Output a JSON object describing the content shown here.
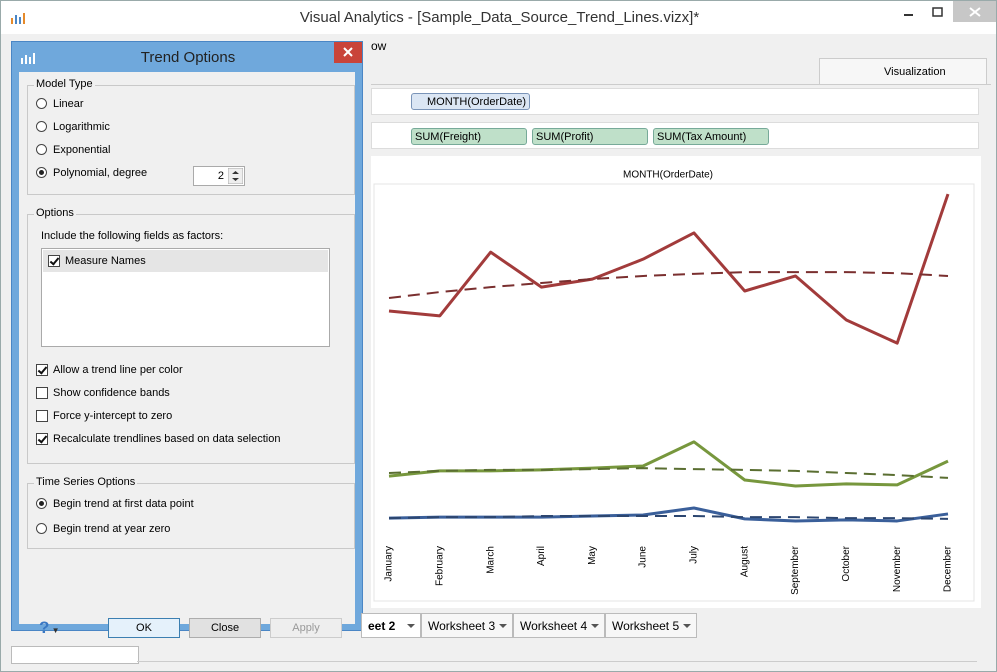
{
  "window": {
    "title": "Visual Analytics - [Sample_Data_Source_Trend_Lines.vizx]*"
  },
  "menu": {
    "item": "ow"
  },
  "panel_tab": "Visualization",
  "shelves": {
    "columns": [
      "MONTH(OrderDate)"
    ],
    "rows": [
      "SUM(Freight)",
      "SUM(Profit)",
      "SUM(Tax Amount)"
    ]
  },
  "sheet_tabs": [
    "eet 2",
    "Worksheet 3",
    "Worksheet 4",
    "Worksheet 5"
  ],
  "chart_data": {
    "type": "line",
    "title": "MONTH(OrderDate)",
    "categories": [
      "January",
      "February",
      "March",
      "April",
      "May",
      "June",
      "July",
      "August",
      "September",
      "October",
      "November",
      "December"
    ],
    "ylim": [
      0,
      100
    ],
    "series": [
      {
        "color": "#a23b3b",
        "dashed": false,
        "values": [
          64.3,
          62.9,
          81.1,
          71.1,
          73.4,
          79.1,
          86.6,
          70,
          74.3,
          61.7,
          55.1,
          97.7
        ]
      },
      {
        "color": "#7a2f2f",
        "dashed": true,
        "values": [
          68,
          69.7,
          71.1,
          72.3,
          73.4,
          74.3,
          74.9,
          75.4,
          75.4,
          75.4,
          75.1,
          74.3
        ]
      },
      {
        "color": "#77973d",
        "dashed": false,
        "values": [
          17.1,
          18.6,
          18.6,
          18.9,
          19.4,
          20,
          26.9,
          16,
          14.3,
          14.9,
          14.6,
          21.4
        ]
      },
      {
        "color": "#5a6e31",
        "dashed": true,
        "values": [
          18,
          18.6,
          18.9,
          18.9,
          19.1,
          19.4,
          19.1,
          18.9,
          18.6,
          18,
          17.4,
          16.6
        ]
      },
      {
        "color": "#3a5f9a",
        "dashed": false,
        "values": [
          5.1,
          5.4,
          5.4,
          5.4,
          5.7,
          6,
          8,
          4.9,
          4.3,
          4.6,
          4.3,
          6.3
        ]
      },
      {
        "color": "#2c4670",
        "dashed": true,
        "values": [
          5.1,
          5.4,
          5.4,
          5.7,
          5.7,
          5.7,
          5.7,
          5.4,
          5.4,
          5.1,
          5.1,
          4.9
        ]
      }
    ]
  },
  "dialog": {
    "title": "Trend Options",
    "model_type": {
      "title": "Model Type",
      "options": [
        {
          "label": "Linear",
          "checked": false
        },
        {
          "label": "Logarithmic",
          "checked": false
        },
        {
          "label": "Exponential",
          "checked": false
        },
        {
          "label": "Polynomial, degree",
          "checked": true
        }
      ],
      "degree": 2
    },
    "options": {
      "title": "Options",
      "factors_label": "Include the following fields as factors:",
      "factors": [
        {
          "label": "Measure Names",
          "checked": true
        }
      ],
      "checks": [
        {
          "label": "Allow a trend line per color",
          "checked": true
        },
        {
          "label": "Show confidence bands",
          "checked": false
        },
        {
          "label": "Force y-intercept to zero",
          "checked": false
        },
        {
          "label": "Recalculate trendlines based on data selection",
          "checked": true
        }
      ]
    },
    "time_series": {
      "title": "Time Series Options",
      "options": [
        {
          "label": "Begin trend at first data point",
          "checked": true
        },
        {
          "label": "Begin trend at year zero",
          "checked": false
        }
      ]
    },
    "help": "?",
    "buttons": [
      "OK",
      "Close",
      "Apply"
    ]
  }
}
